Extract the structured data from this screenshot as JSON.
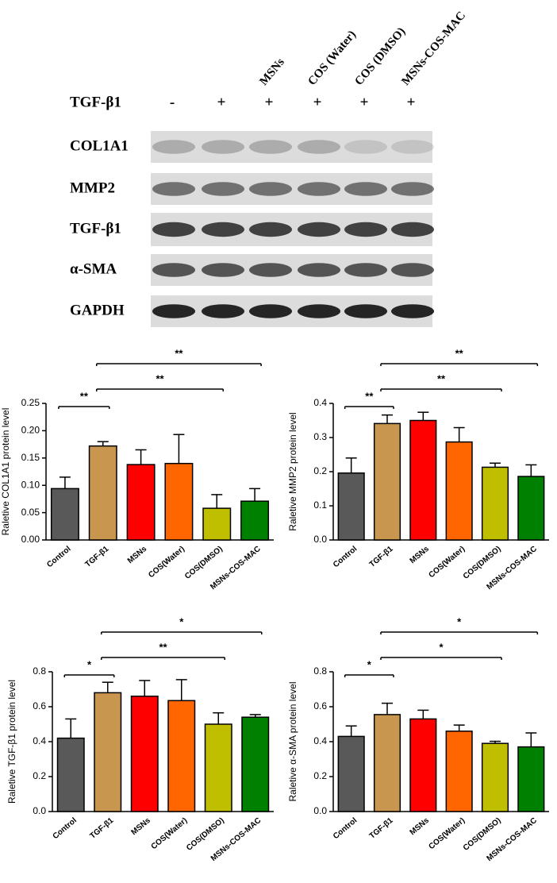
{
  "blot": {
    "columns": [
      "MSNs",
      "COS (Water)",
      "COS (DMSO)",
      "MSNs-COS-MAC"
    ],
    "treatment_label": "TGF-β1",
    "treatment": [
      "-",
      "+",
      "+",
      "+",
      "+",
      "+"
    ],
    "rows": [
      "COL1A1",
      "MMP2",
      "TGF-β1",
      "α-SMA",
      "GAPDH"
    ]
  },
  "chart_data": [
    {
      "type": "bar",
      "ylabel": "Raletive COL1A1 protein level",
      "categories": [
        "Control",
        "TGF-β1",
        "MSNs",
        "COS(Water)",
        "COS(DMSO)",
        "MSNs-COS-MAC"
      ],
      "values": [
        0.094,
        0.172,
        0.138,
        0.14,
        0.058,
        0.071
      ],
      "errors": [
        0.021,
        0.008,
        0.027,
        0.053,
        0.025,
        0.023
      ],
      "colors": [
        "#595959",
        "#c8964f",
        "#ff0000",
        "#ff6600",
        "#bfbf00",
        "#008000"
      ],
      "ylim": [
        0,
        0.25
      ],
      "yticks": [
        {
          "value": 0,
          "label": "0.00"
        },
        {
          "value": 0.05,
          "label": "0.05"
        },
        {
          "value": 0.1,
          "label": "0.10"
        },
        {
          "value": 0.15,
          "label": "0.15"
        },
        {
          "value": 0.2,
          "label": "0.20"
        },
        0.25
      ],
      "significance": [
        "**",
        "**",
        "**"
      ]
    },
    {
      "type": "bar",
      "ylabel": "Raletive MMP2 protein level",
      "categories": [
        "Control",
        "TGF-β1",
        "MSNs",
        "COS(Water)",
        "COS(DMSO)",
        "MSNs-COS-MAC"
      ],
      "values": [
        0.196,
        0.341,
        0.35,
        0.287,
        0.213,
        0.186
      ],
      "errors": [
        0.044,
        0.025,
        0.024,
        0.042,
        0.012,
        0.034
      ],
      "colors": [
        "#595959",
        "#c8964f",
        "#ff0000",
        "#ff6600",
        "#bfbf00",
        "#008000"
      ],
      "ylim": [
        0,
        0.4
      ],
      "yticks": [
        {
          "value": 0,
          "label": "0.0"
        },
        0.1,
        0.2,
        0.3,
        0.4
      ],
      "significance": [
        "**",
        "**",
        "**"
      ]
    },
    {
      "type": "bar",
      "ylabel": "Raletive TGF-β1 protein level",
      "categories": [
        "Control",
        "TGF-β1",
        "MSNs",
        "COS(Water)",
        "COS(DMSO)",
        "MSNs-COS-MAC"
      ],
      "values": [
        0.42,
        0.68,
        0.66,
        0.635,
        0.5,
        0.54
      ],
      "errors": [
        0.11,
        0.06,
        0.09,
        0.12,
        0.065,
        0.015
      ],
      "colors": [
        "#595959",
        "#c8964f",
        "#ff0000",
        "#ff6600",
        "#bfbf00",
        "#008000"
      ],
      "ylim": [
        0,
        0.8
      ],
      "yticks": [
        {
          "value": 0,
          "label": "0.0"
        },
        0.2,
        0.4,
        0.6,
        0.8
      ],
      "significance": [
        "*",
        "**",
        "*"
      ]
    },
    {
      "type": "bar",
      "ylabel": "Raletive α-SMA protein level",
      "categories": [
        "Control",
        "TGF-β1",
        "MSNs",
        "COS(Water)",
        "COS(DMSO)",
        "MSNs-COS-MAC"
      ],
      "values": [
        0.43,
        0.555,
        0.53,
        0.46,
        0.39,
        0.37
      ],
      "errors": [
        0.06,
        0.065,
        0.05,
        0.035,
        0.012,
        0.08
      ],
      "colors": [
        "#595959",
        "#c8964f",
        "#ff0000",
        "#ff6600",
        "#bfbf00",
        "#008000"
      ],
      "ylim": [
        0,
        0.8
      ],
      "yticks": [
        {
          "value": 0,
          "label": "0.0"
        },
        0.2,
        0.4,
        0.6,
        0.8
      ],
      "significance": [
        "*",
        "*",
        "*"
      ]
    }
  ]
}
